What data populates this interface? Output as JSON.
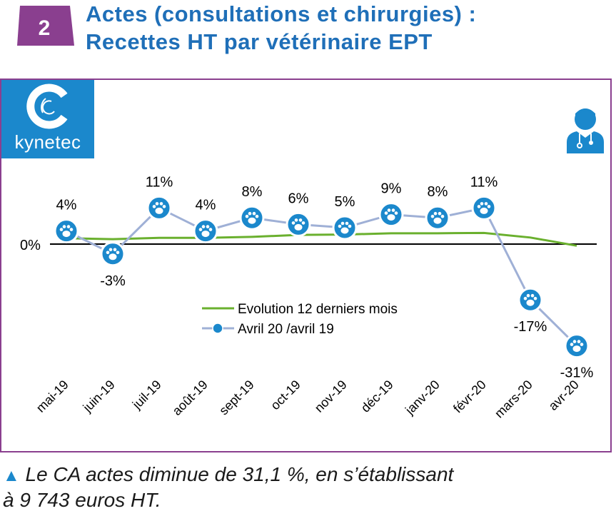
{
  "header": {
    "badge_number": "2",
    "title_line1": "Actes (consultations et chirurgies) :",
    "title_line2": "Recettes HT par vétérinaire EPT"
  },
  "logo": {
    "text": "kynetec",
    "icon": "kynetec-c-logo-icon"
  },
  "vet_icon": "veterinarian-icon",
  "colors": {
    "title": "#1f6fb8",
    "frame": "#8a3f8f",
    "badge": "#8a3f8f",
    "series_12m": "#6ab02e",
    "series_yoy": "#9fb0d6",
    "marker": "#1b88cc"
  },
  "chart_data": {
    "type": "line",
    "categories": [
      "mai-19",
      "juin-19",
      "juil-19",
      "août-19",
      "sept-19",
      "oct-19",
      "nov-19",
      "déc-19",
      "janv-20",
      "févr-20",
      "mars-20",
      "avr-20"
    ],
    "zero_label": "0%",
    "series": [
      {
        "name": "Evolution 12 derniers mois",
        "values": [
          1.8,
          1.5,
          1.9,
          1.9,
          2.2,
          2.8,
          2.9,
          3.3,
          3.3,
          3.4,
          2.0,
          -0.5
        ]
      },
      {
        "name": "Avril 20 /avril 19",
        "values": [
          4,
          -3,
          11,
          4,
          8,
          6,
          5,
          9,
          8,
          11,
          -17,
          -31
        ],
        "labels": [
          "4%",
          "-3%",
          "11%",
          "4%",
          "8%",
          "6%",
          "5%",
          "9%",
          "8%",
          "11%",
          "-17%",
          "-31%"
        ]
      }
    ],
    "grid": false,
    "legend_placement": "center"
  },
  "footnote": {
    "marker": "▲",
    "line1": " Le CA actes diminue de 31,1 %, en s’établissant",
    "line2": "à 9 743 euros HT."
  }
}
